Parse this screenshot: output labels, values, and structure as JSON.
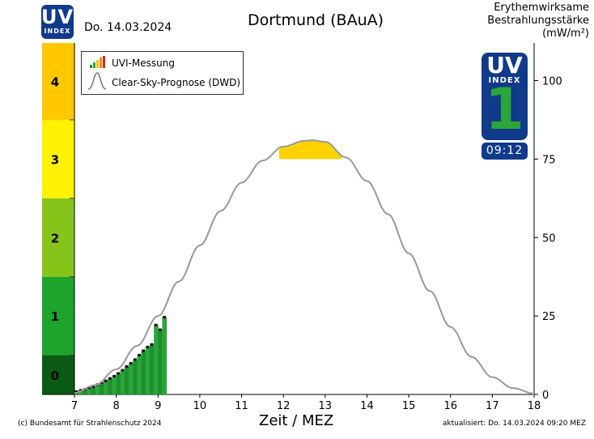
{
  "header": {
    "logo_uv": "UV",
    "logo_index": "INDEX",
    "date": "Do. 14.03.2024",
    "title": "Dortmund (BAuA)",
    "right_axis_label": [
      "Erythemwirksame",
      "Bestrahlungsstärke",
      "(mW/m²)"
    ]
  },
  "badge": {
    "uv": "UV",
    "index": "INDEX",
    "value": "1",
    "time": "09:12"
  },
  "legend": {
    "measurement": "UVI-Messung",
    "forecast": "Clear-Sky-Prognose (DWD)"
  },
  "footer": {
    "copyright": "(c) Bundesamt für Strahlenschutz 2024",
    "updated": "aktualisiert: Do. 14.03.2024  09:20  MEZ"
  },
  "chart_data": {
    "type": "area",
    "title": "Dortmund (BAuA)",
    "xlabel": "Zeit / MEZ",
    "ylabel_right": "Erythemwirksame Bestrahlungsstärke (mW/m²)",
    "xlim": [
      7,
      18
    ],
    "ylim_right": [
      0,
      112
    ],
    "x_ticks": [
      7,
      8,
      9,
      10,
      11,
      12,
      13,
      14,
      15,
      16,
      17,
      18
    ],
    "y_ticks_right": [
      0,
      25,
      50,
      75,
      100
    ],
    "uvi_bands": [
      {
        "label": "0",
        "from": 0,
        "to": 12.5,
        "color": "#0a5a14"
      },
      {
        "label": "1",
        "from": 12.5,
        "to": 37.5,
        "color": "#1ea32c"
      },
      {
        "label": "2",
        "from": 37.5,
        "to": 62.5,
        "color": "#86c41a"
      },
      {
        "label": "3",
        "from": 62.5,
        "to": 87.5,
        "color": "#fff200"
      },
      {
        "label": "4",
        "from": 87.5,
        "to": 112,
        "color": "#ffc800"
      }
    ],
    "forecast": {
      "name": "Clear-Sky-Prognose (DWD)",
      "color": "#999999",
      "x": [
        7.0,
        7.5,
        8.0,
        8.5,
        9.0,
        9.5,
        10.0,
        10.5,
        11.0,
        11.5,
        12.0,
        12.5,
        12.7,
        13.0,
        13.5,
        14.0,
        14.5,
        15.0,
        15.5,
        16.0,
        16.5,
        17.0,
        17.5,
        18.0
      ],
      "y": [
        0.5,
        3.0,
        8.0,
        15.5,
        25.0,
        36.0,
        47.5,
        58.5,
        67.5,
        74.5,
        79.0,
        80.8,
        81.0,
        80.5,
        75.5,
        68.0,
        57.5,
        45.0,
        33.0,
        21.5,
        12.0,
        5.5,
        2.0,
        0.3
      ]
    },
    "forecast_highlight": {
      "x_from": 11.9,
      "x_to": 13.4,
      "threshold": 75,
      "color": "#ffd200"
    },
    "measurement": {
      "name": "UVI-Messung",
      "x": [
        7.05,
        7.15,
        7.25,
        7.35,
        7.45,
        7.55,
        7.65,
        7.75,
        7.85,
        7.95,
        8.05,
        8.15,
        8.25,
        8.35,
        8.45,
        8.55,
        8.65,
        8.75,
        8.85,
        8.95,
        9.05,
        9.15
      ],
      "y": [
        0.8,
        1.2,
        1.5,
        2.0,
        2.4,
        3.0,
        3.6,
        4.2,
        5.0,
        5.7,
        6.6,
        7.6,
        8.8,
        9.8,
        11.0,
        12.4,
        13.8,
        15.0,
        15.8,
        22.0,
        20.5,
        24.5
      ]
    }
  }
}
